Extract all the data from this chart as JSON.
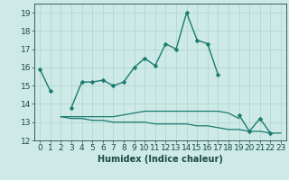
{
  "line1": {
    "x": [
      0,
      1,
      2,
      3,
      4,
      5,
      6,
      7,
      8,
      9,
      10,
      11,
      12,
      13,
      14,
      15,
      16,
      17,
      18
    ],
    "y": [
      15.9,
      14.7,
      null,
      13.8,
      15.2,
      15.2,
      15.3,
      15.0,
      15.2,
      16.0,
      16.5,
      16.1,
      17.3,
      17.0,
      19.0,
      17.5,
      17.3,
      15.6,
      null
    ],
    "color": "#1a7a6e",
    "marker": "D",
    "markersize": 2.5,
    "linewidth": 1.0
  },
  "line2": {
    "x": [
      2,
      3,
      4,
      5,
      6,
      7,
      8,
      9,
      10,
      11,
      12,
      13,
      14,
      15,
      16,
      17,
      18,
      19
    ],
    "y": [
      13.3,
      13.3,
      13.3,
      13.3,
      13.3,
      13.3,
      13.4,
      13.5,
      13.6,
      13.6,
      13.6,
      13.6,
      13.6,
      13.6,
      13.6,
      13.6,
      13.5,
      13.2
    ],
    "color": "#1a7a6e",
    "linewidth": 0.9
  },
  "line3": {
    "x": [
      2,
      3,
      4,
      5,
      6,
      7,
      8,
      9,
      10,
      11,
      12,
      13,
      14,
      15,
      16,
      17,
      18,
      19,
      20,
      21,
      22,
      23
    ],
    "y": [
      13.3,
      13.2,
      13.2,
      13.1,
      13.1,
      13.0,
      13.0,
      13.0,
      13.0,
      12.9,
      12.9,
      12.9,
      12.9,
      12.8,
      12.8,
      12.7,
      12.6,
      12.6,
      12.5,
      12.5,
      12.4,
      12.4
    ],
    "color": "#1a7a6e",
    "linewidth": 0.9
  },
  "line4": {
    "x": [
      19,
      20,
      21,
      22,
      23
    ],
    "y": [
      13.4,
      12.5,
      13.2,
      12.4,
      null
    ],
    "color": "#1a7a6e",
    "marker": "D",
    "markersize": 2.5,
    "linewidth": 1.0
  },
  "xlabel": "Humidex (Indice chaleur)",
  "xlim": [
    -0.5,
    23.5
  ],
  "ylim": [
    12,
    19.5
  ],
  "yticks": [
    12,
    13,
    14,
    15,
    16,
    17,
    18,
    19
  ],
  "xticks": [
    0,
    1,
    2,
    3,
    4,
    5,
    6,
    7,
    8,
    9,
    10,
    11,
    12,
    13,
    14,
    15,
    16,
    17,
    18,
    19,
    20,
    21,
    22,
    23
  ],
  "bg_color": "#ceeae7",
  "grid_color": "#aed4d0",
  "line_color": "#1a7a6e",
  "text_color": "#1a4a44",
  "axis_fontsize": 7,
  "tick_fontsize": 6.5
}
